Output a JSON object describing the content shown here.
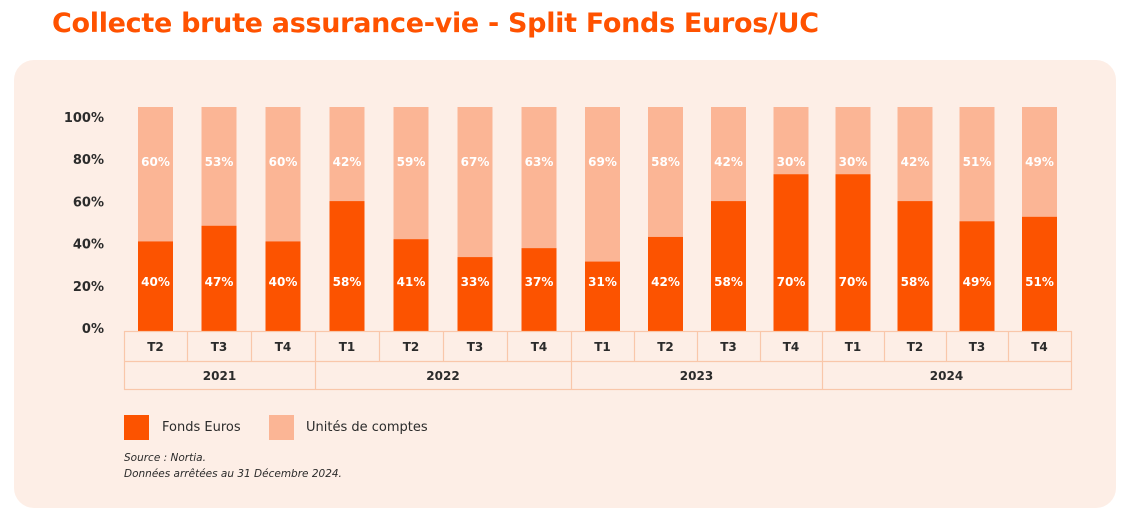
{
  "title": "Collecte brute assurance-vie - Split Fonds Euros/UC",
  "colors": {
    "title": "#ff5200",
    "fonds_euros": "#fc5300",
    "unites_de_comptes": "#fbb595",
    "panel_bg": "#fdeee6",
    "grid_border": "#f9c7aa"
  },
  "chart_data": {
    "type": "bar",
    "stacked": true,
    "title": "Collecte brute assurance-vie - Split Fonds Euros/UC",
    "xlabel": "",
    "ylabel": "",
    "ylim": [
      0,
      100
    ],
    "y_ticks": [
      "0%",
      "20%",
      "40%",
      "60%",
      "80%",
      "100%"
    ],
    "categories": [
      "T2",
      "T3",
      "T4",
      "T1",
      "T2",
      "T3",
      "T4",
      "T1",
      "T2",
      "T3",
      "T4",
      "T1",
      "T2",
      "T3",
      "T4"
    ],
    "groups": [
      {
        "label": "2021",
        "count": 3
      },
      {
        "label": "2022",
        "count": 4
      },
      {
        "label": "2023",
        "count": 4
      },
      {
        "label": "2024",
        "count": 4
      }
    ],
    "series": [
      {
        "name": "Fonds Euros",
        "color": "#fc5300",
        "values": [
          40,
          47,
          40,
          58,
          41,
          33,
          37,
          31,
          42,
          58,
          70,
          70,
          58,
          49,
          51
        ]
      },
      {
        "name": "Unités de comptes",
        "color": "#fbb595",
        "values": [
          60,
          53,
          60,
          42,
          59,
          67,
          63,
          69,
          58,
          42,
          30,
          30,
          42,
          51,
          49
        ]
      }
    ],
    "legend": "bottom-left",
    "grid": false
  },
  "legend": {
    "items": [
      {
        "label": "Fonds Euros"
      },
      {
        "label": "Unités de comptes"
      }
    ]
  },
  "notes": {
    "source": "Source : Nortia.",
    "date": "Données arrêtées au 31 Décembre 2024."
  }
}
